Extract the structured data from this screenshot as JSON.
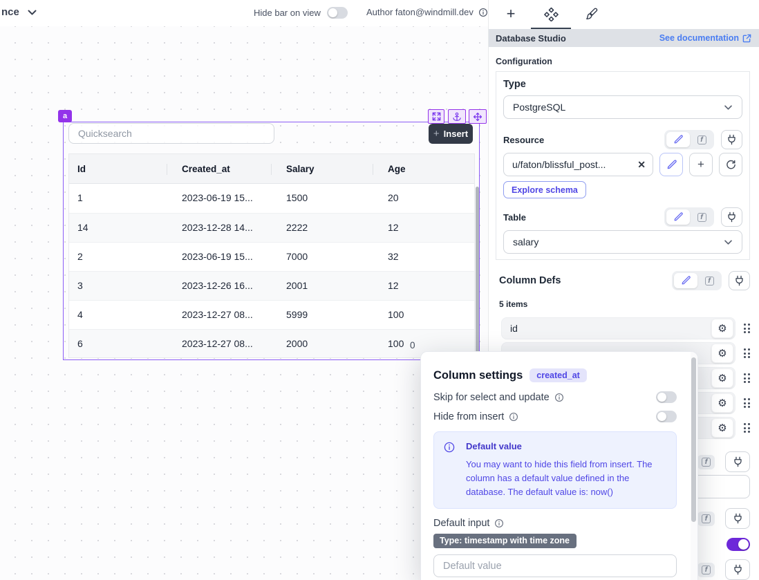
{
  "icons": {
    "gear": "⚙",
    "clear": "✕",
    "plus": "+",
    "fn": "f"
  },
  "topbar": {
    "app_name": "nce",
    "hide_bar_label": "Hide bar on view",
    "author_label": "Author faton@windmill.dev"
  },
  "canvas": {
    "component_badge": "a",
    "quicksearch_placeholder": "Quicksearch",
    "insert_label": "Insert",
    "pagination_left": "0",
    "table": {
      "columns": [
        "Id",
        "Created_at",
        "Salary",
        "Age"
      ],
      "rows": [
        [
          "1",
          "2023-06-19 15...",
          "1500",
          "20"
        ],
        [
          "14",
          "2023-12-28 14...",
          "2222",
          "12"
        ],
        [
          "2",
          "2023-06-19 15...",
          "7000",
          "32"
        ],
        [
          "3",
          "2023-12-26 16...",
          "2001",
          "12"
        ],
        [
          "4",
          "2023-12-27 08...",
          "5999",
          "100"
        ],
        [
          "6",
          "2023-12-27 08...",
          "2000",
          "100"
        ]
      ]
    }
  },
  "panel": {
    "header": {
      "title": "Database Studio",
      "doc_link": "See documentation"
    },
    "configuration_label": "Configuration",
    "type": {
      "label": "Type",
      "value": "PostgreSQL"
    },
    "resource": {
      "label": "Resource",
      "value": "u/faton/blissful_post...",
      "explore_button": "Explore schema"
    },
    "table": {
      "label": "Table",
      "value": "salary"
    },
    "column_defs": {
      "label": "Column Defs",
      "count_label": "5 items",
      "items": [
        "id",
        "",
        "",
        "",
        ""
      ]
    }
  },
  "modal": {
    "title": "Column settings",
    "column_badge": "created_at",
    "skip_label": "Skip for select and update",
    "hide_label": "Hide from insert",
    "alert": {
      "title": "Default value",
      "body": "You may want to hide this field from insert. The column has a default value defined in the database. The default value is: now()"
    },
    "default_input_label": "Default input",
    "type_badge": "Type: timestamp with time zone",
    "default_placeholder": "Default value"
  },
  "colors": {
    "accent": "#9333ea",
    "toggle_on": "#6d28d9",
    "link": "#4a7df2",
    "alert_text": "#4f46e5"
  }
}
